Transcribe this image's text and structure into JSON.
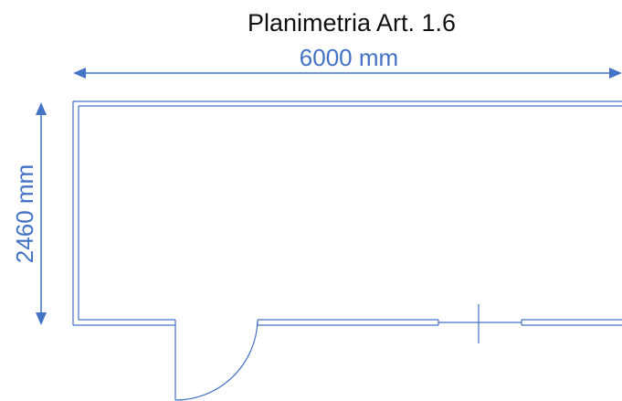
{
  "title": "Planimetria Art. 1.6",
  "dimensions": {
    "width_label": "6000 mm",
    "height_label": "2460 mm"
  },
  "colors": {
    "plan_line": "#4472C4",
    "dimension": "#4472C4",
    "title_text": "#111111"
  }
}
